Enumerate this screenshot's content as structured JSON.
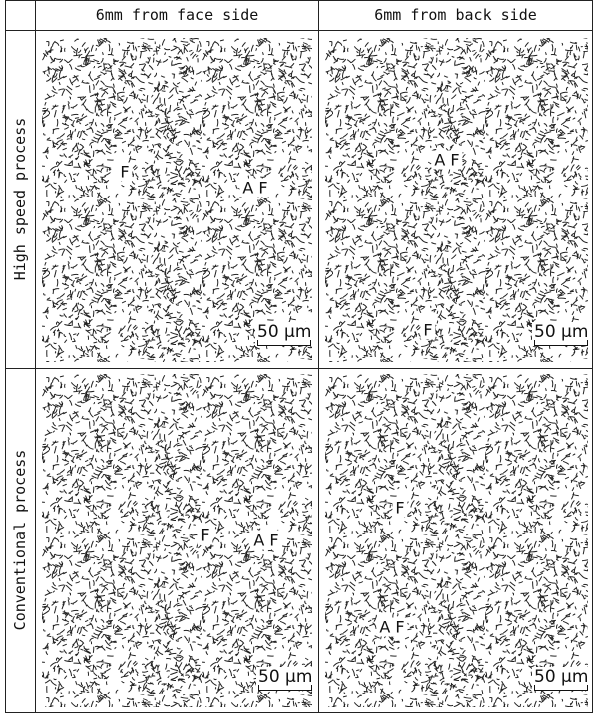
{
  "header": {
    "columns": [
      "6mm from face side",
      "6mm from back side"
    ]
  },
  "rows": [
    {
      "label": "High speed process",
      "panels": [
        {
          "labels": [
            "F",
            "A F"
          ],
          "scale_bar": "50 μm"
        },
        {
          "labels": [
            "A F",
            "F"
          ],
          "scale_bar": "50 μm"
        }
      ]
    },
    {
      "label": "Conventional process",
      "panels": [
        {
          "labels": [
            "F",
            "A F"
          ],
          "scale_bar": "50 μm"
        },
        {
          "labels": [
            "F",
            "A F"
          ],
          "scale_bar": "50 μm"
        }
      ]
    }
  ]
}
